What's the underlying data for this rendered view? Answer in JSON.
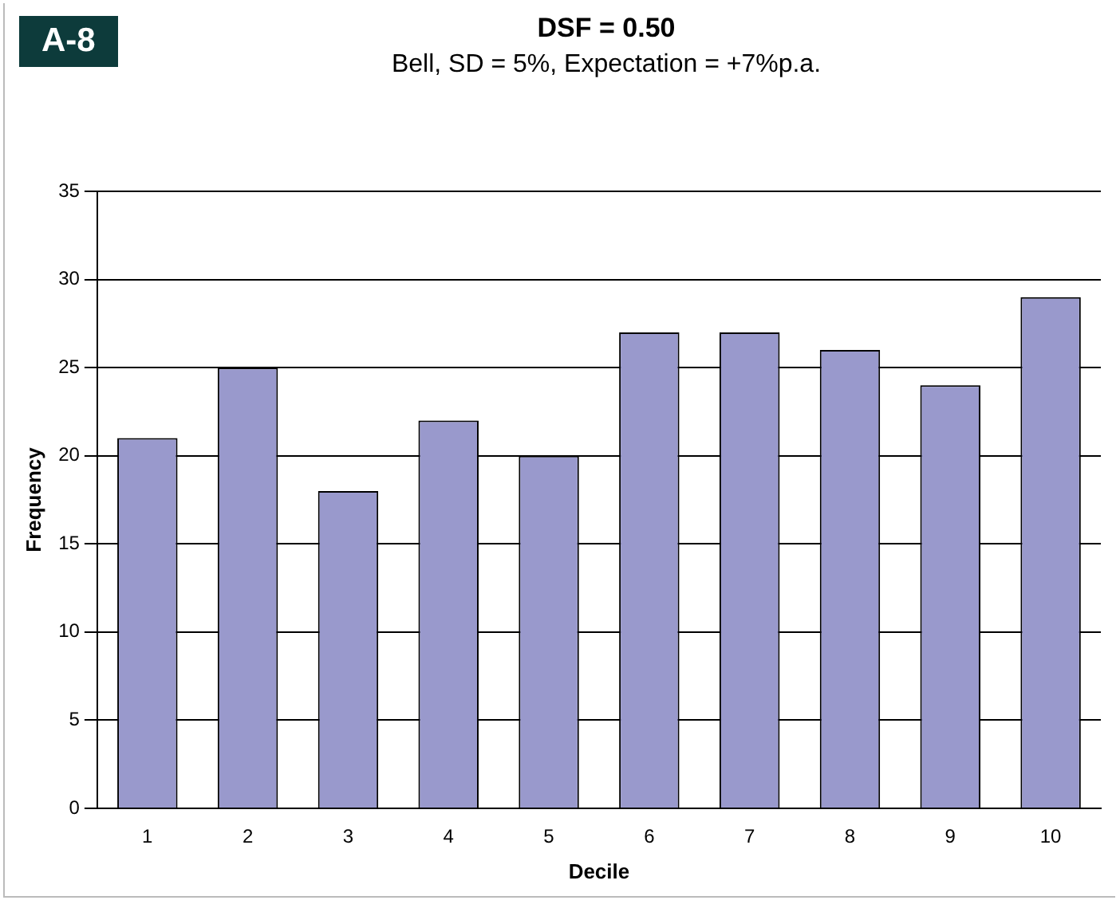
{
  "chart_data": {
    "type": "bar",
    "title": "DSF = 0.50",
    "subtitle": "Bell, SD = 5%, Expectation = +7%p.a.",
    "xlabel": "Decile",
    "ylabel": "Frequency",
    "annotations": [
      "A-8"
    ],
    "categories": [
      "1",
      "2",
      "3",
      "4",
      "5",
      "6",
      "7",
      "8",
      "9",
      "10"
    ],
    "values": [
      21,
      25,
      18,
      22,
      20,
      27,
      27,
      26,
      24,
      29
    ],
    "color": "#9999cc",
    "ylim": [
      0,
      35
    ],
    "yticks": [
      0,
      5,
      10,
      15,
      20,
      25,
      30,
      35
    ],
    "grid": "y",
    "legend": false
  }
}
